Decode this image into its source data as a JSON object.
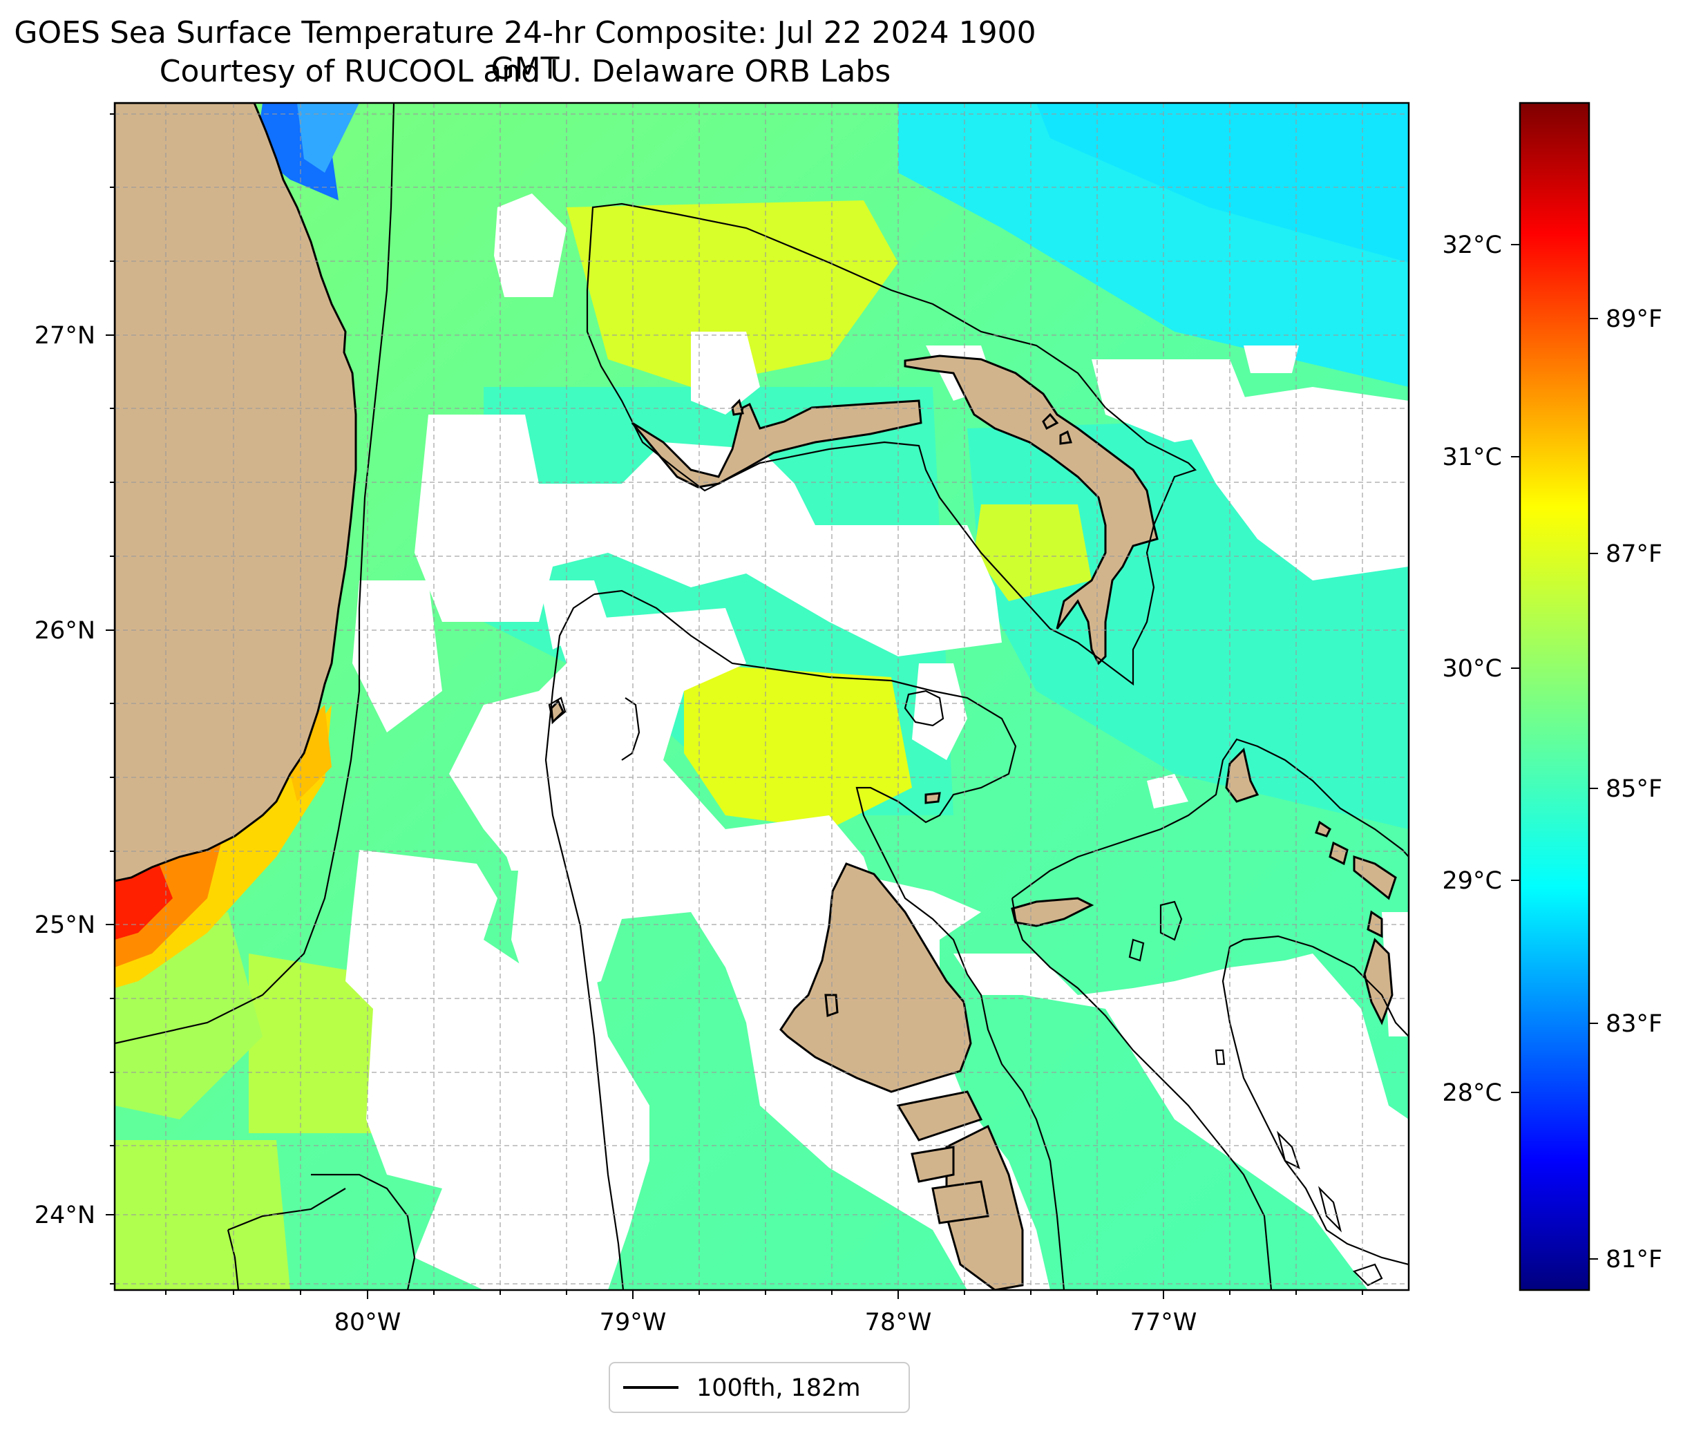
{
  "title": "GOES Sea Surface Temperature 24-hr Composite: Jul 22 2024 1900 GMT",
  "subtitle": "Courtesy of RUCOOL and U. Delaware ORB Labs",
  "map": {
    "lon_labels": [
      "80°W",
      "79°W",
      "78°W",
      "77°W"
    ],
    "lat_labels": [
      "27°N",
      "26°N",
      "25°N",
      "24°N"
    ],
    "extent": {
      "lon_min": -80.95,
      "lon_max": -76.08,
      "lat_min": 23.75,
      "lat_max": 27.78
    },
    "land_color": "#d2b48c",
    "no_data_color": "#ffffff",
    "grid": true
  },
  "legend": {
    "label": "100fth, 182m"
  },
  "colorbar": {
    "celsius_labels": [
      "32°C",
      "31°C",
      "30°C",
      "29°C",
      "28°C"
    ],
    "fahrenheit_labels": [
      "89°F",
      "87°F",
      "85°F",
      "83°F",
      "81°F"
    ],
    "colormap": "jet",
    "colors": [
      "#00007f",
      "#0000ff",
      "#007fff",
      "#00ffff",
      "#7fff7f",
      "#ffff00",
      "#ff7f00",
      "#ff0000",
      "#7f0000"
    ]
  }
}
